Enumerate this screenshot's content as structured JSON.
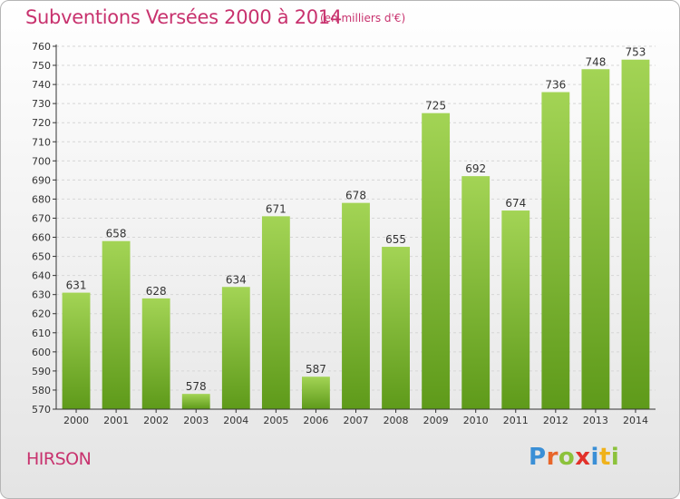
{
  "header": {
    "title": "Subventions Versées 2000 à 2014",
    "subtitle": "(en milliers d'€)"
  },
  "footer": {
    "place": "HIRSON",
    "logo_letters": [
      {
        "ch": "P",
        "color": "#3a8fd6"
      },
      {
        "ch": "r",
        "color": "#e8662a"
      },
      {
        "ch": "o",
        "color": "#8cc23c"
      },
      {
        "ch": "x",
        "color": "#e2312a"
      },
      {
        "ch": "i",
        "color": "#3a8fd6"
      },
      {
        "ch": "t",
        "color": "#f0b21b"
      },
      {
        "ch": "i",
        "color": "#8cc23c"
      }
    ]
  },
  "colors": {
    "title": "#c8326e",
    "bar_top": "#a3d455",
    "bar_bottom": "#5e9a1a",
    "grid": "#d6d6d6",
    "axis": "#333333",
    "label": "#333333"
  },
  "chart_data": {
    "type": "bar",
    "categories": [
      "2000",
      "2001",
      "2002",
      "2003",
      "2004",
      "2005",
      "2006",
      "2007",
      "2008",
      "2009",
      "2010",
      "2011",
      "2012",
      "2013",
      "2014"
    ],
    "values": [
      631,
      658,
      628,
      578,
      634,
      671,
      587,
      678,
      655,
      725,
      692,
      674,
      736,
      748,
      753
    ],
    "title": "Subventions Versées 2000 à 2014",
    "subtitle": "(en milliers d'€)",
    "ylim": [
      570,
      760
    ],
    "ytick_step": 10,
    "grid": true,
    "data_labels": true
  }
}
